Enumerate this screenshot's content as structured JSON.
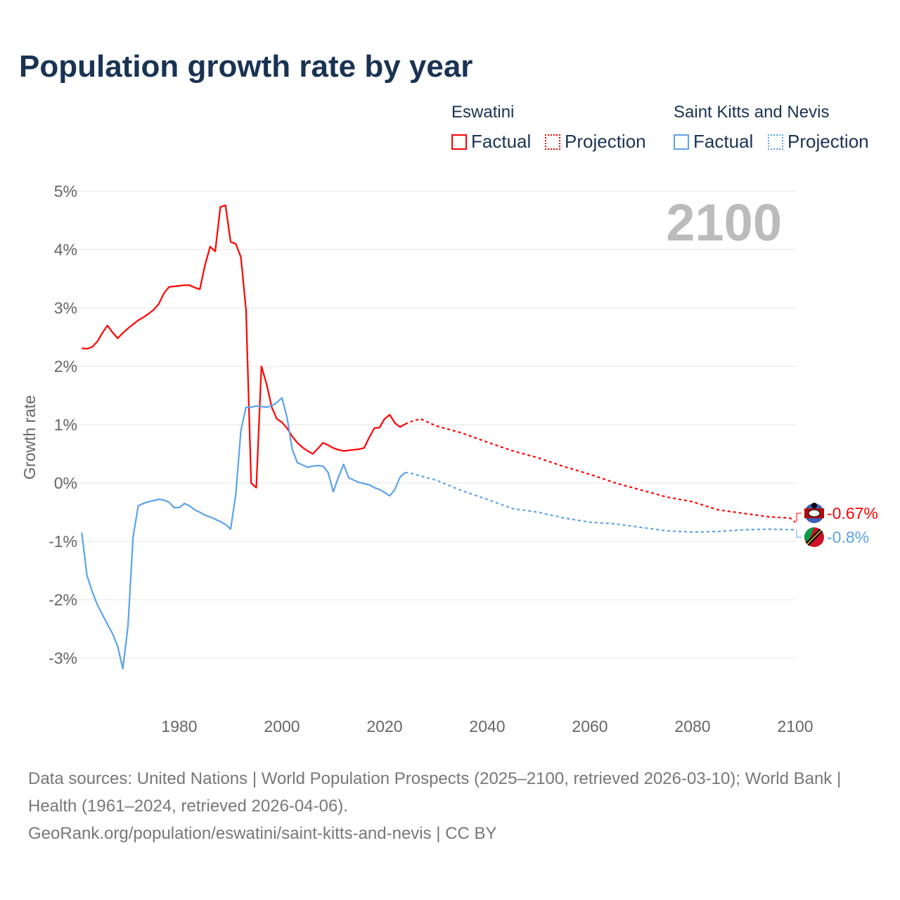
{
  "title": "Population growth rate by year",
  "legend": {
    "groups": [
      {
        "name": "Eswatini",
        "factual": "Factual",
        "projection": "Projection",
        "color": "#ff0000"
      },
      {
        "name": "Saint Kitts and Nevis",
        "factual": "Factual",
        "projection": "Projection",
        "color": "#5ba3ea"
      }
    ]
  },
  "year_watermark": "2100",
  "footer": {
    "sources": "Data sources: United Nations | World Population Prospects (2025–2100, retrieved 2026-03-10); World Bank | Health (1961–2024, retrieved 2026-04-06).",
    "link": "GeoRank.org/population/eswatini/saint-kitts-and-nevis | CC BY"
  },
  "chart_data": {
    "type": "line",
    "title": "Population growth rate by year",
    "xlabel": "",
    "ylabel": "Growth rate",
    "xlim": [
      1961,
      2100
    ],
    "ylim": [
      -3.6,
      5
    ],
    "xticks": [
      1980,
      2000,
      2020,
      2040,
      2060,
      2080,
      2100
    ],
    "xtick_labels": [
      "1980",
      "2000",
      "2020",
      "2040",
      "2060",
      "2080",
      "2100"
    ],
    "yticks": [
      5,
      4,
      3,
      2,
      1,
      0,
      -1,
      -2,
      -3
    ],
    "ytick_labels": [
      "5%",
      "4%",
      "3%",
      "2%",
      "1%",
      "0%",
      "-1%",
      "-2%",
      "-3%"
    ],
    "grid": true,
    "legend_position": "top-right",
    "series": [
      {
        "name": "Eswatini",
        "color": "#ff0000",
        "end_label": "-0.67%",
        "factual": {
          "x": [
            1961,
            1962,
            1963,
            1964,
            1965,
            1966,
            1967,
            1968,
            1969,
            1970,
            1971,
            1972,
            1973,
            1974,
            1975,
            1976,
            1977,
            1978,
            1979,
            1980,
            1981,
            1982,
            1983,
            1984,
            1985,
            1986,
            1987,
            1988,
            1989,
            1990,
            1991,
            1992,
            1993,
            1994,
            1995,
            1996,
            1997,
            1998,
            1999,
            2000,
            2001,
            2002,
            2003,
            2004,
            2005,
            2006,
            2007,
            2008,
            2009,
            2010,
            2011,
            2012,
            2013,
            2014,
            2015,
            2016,
            2017,
            2018,
            2019,
            2020,
            2021,
            2022,
            2023,
            2024
          ],
          "y": [
            2.31,
            2.3,
            2.33,
            2.42,
            2.57,
            2.7,
            2.58,
            2.48,
            2.57,
            2.65,
            2.72,
            2.79,
            2.84,
            2.9,
            2.97,
            3.07,
            3.25,
            3.36,
            3.37,
            3.38,
            3.39,
            3.39,
            3.35,
            3.32,
            3.73,
            4.05,
            3.97,
            4.73,
            4.76,
            4.13,
            4.1,
            3.87,
            2.97,
            0.0,
            -0.08,
            2.0,
            1.7,
            1.3,
            1.1,
            1.04,
            0.94,
            0.8,
            0.69,
            0.61,
            0.55,
            0.5,
            0.59,
            0.69,
            0.65,
            0.6,
            0.57,
            0.55,
            0.56,
            0.57,
            0.58,
            0.6,
            0.78,
            0.94,
            0.95,
            1.1,
            1.17,
            1.03,
            0.96,
            1.01
          ]
        },
        "projection": {
          "x": [
            2024,
            2025,
            2027,
            2030,
            2035,
            2040,
            2045,
            2050,
            2055,
            2060,
            2065,
            2070,
            2075,
            2080,
            2085,
            2090,
            2095,
            2099,
            2100
          ],
          "y": [
            1.01,
            1.05,
            1.1,
            0.98,
            0.86,
            0.7,
            0.55,
            0.43,
            0.28,
            0.15,
            0.0,
            -0.12,
            -0.24,
            -0.32,
            -0.46,
            -0.52,
            -0.58,
            -0.6,
            -0.67
          ]
        }
      },
      {
        "name": "Saint Kitts and Nevis",
        "color": "#5ba3ea",
        "end_label": "-0.8%",
        "factual": {
          "x": [
            1961,
            1962,
            1963,
            1964,
            1965,
            1966,
            1967,
            1968,
            1969,
            1970,
            1971,
            1972,
            1973,
            1974,
            1975,
            1976,
            1977,
            1978,
            1979,
            1980,
            1981,
            1982,
            1983,
            1984,
            1985,
            1986,
            1987,
            1988,
            1989,
            1990,
            1991,
            1992,
            1993,
            1994,
            1995,
            1996,
            1997,
            1998,
            1999,
            2000,
            2001,
            2002,
            2003,
            2004,
            2005,
            2006,
            2007,
            2008,
            2009,
            2010,
            2011,
            2012,
            2013,
            2014,
            2015,
            2016,
            2017,
            2018,
            2019,
            2020,
            2021,
            2022,
            2023,
            2024
          ],
          "y": [
            -0.85,
            -1.58,
            -1.85,
            -2.08,
            -2.25,
            -2.42,
            -2.58,
            -2.8,
            -3.18,
            -2.45,
            -0.92,
            -0.39,
            -0.35,
            -0.32,
            -0.3,
            -0.28,
            -0.29,
            -0.33,
            -0.42,
            -0.42,
            -0.35,
            -0.39,
            -0.46,
            -0.5,
            -0.55,
            -0.58,
            -0.62,
            -0.66,
            -0.71,
            -0.79,
            -0.2,
            0.9,
            1.3,
            1.3,
            1.32,
            1.31,
            1.3,
            1.32,
            1.38,
            1.46,
            1.12,
            0.58,
            0.35,
            0.31,
            0.27,
            0.29,
            0.3,
            0.29,
            0.18,
            -0.15,
            0.1,
            0.32,
            0.09,
            0.05,
            0.01,
            -0.01,
            -0.03,
            -0.08,
            -0.11,
            -0.16,
            -0.22,
            -0.11,
            0.1,
            0.18
          ]
        },
        "projection": {
          "x": [
            2024,
            2025,
            2030,
            2035,
            2040,
            2045,
            2050,
            2055,
            2060,
            2065,
            2070,
            2075,
            2080,
            2085,
            2090,
            2095,
            2100
          ],
          "y": [
            0.18,
            0.17,
            0.05,
            -0.13,
            -0.28,
            -0.44,
            -0.5,
            -0.6,
            -0.67,
            -0.7,
            -0.76,
            -0.82,
            -0.84,
            -0.83,
            -0.8,
            -0.79,
            -0.8
          ]
        }
      }
    ]
  }
}
